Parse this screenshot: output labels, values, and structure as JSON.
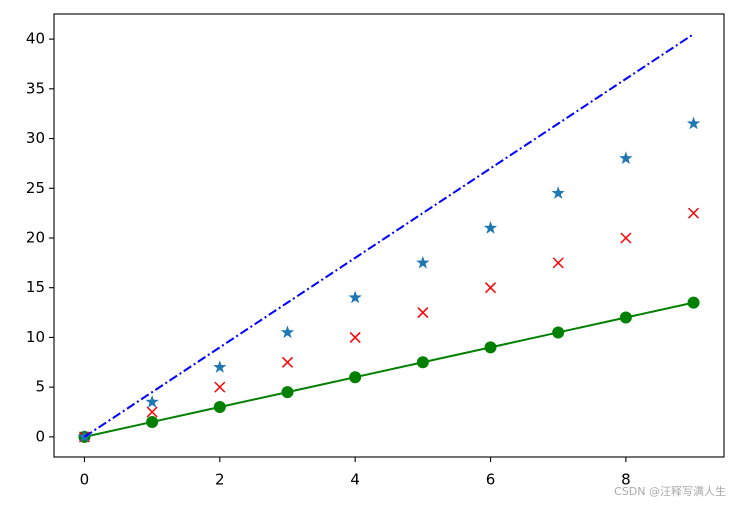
{
  "chart_data": {
    "type": "line",
    "x": [
      0,
      1,
      2,
      3,
      4,
      5,
      6,
      7,
      8,
      9
    ],
    "series": [
      {
        "color": "#008000",
        "marker": "circle",
        "linestyle": "solid",
        "values": [
          0,
          1.5,
          3,
          4.5,
          6,
          7.5,
          9,
          10.5,
          12,
          13.5
        ]
      },
      {
        "color": "#ff0000",
        "marker": "x",
        "linestyle": "none",
        "values": [
          0,
          2.5,
          5,
          7.5,
          10,
          12.5,
          15,
          17.5,
          20,
          22.5
        ]
      },
      {
        "color": "#1f77b4",
        "marker": "star",
        "linestyle": "none",
        "values": [
          0,
          3.5,
          7,
          10.5,
          14,
          17.5,
          21,
          24.5,
          28,
          31.5
        ]
      },
      {
        "color": "#0000ff",
        "marker": "none",
        "linestyle": "dashdot",
        "values": [
          0,
          4.5,
          9,
          13.5,
          18,
          22.5,
          27,
          31.5,
          36,
          40.5
        ]
      }
    ],
    "xlim": [
      -0.45,
      9.45
    ],
    "xticks": [
      0,
      2,
      4,
      6,
      8
    ],
    "ylim": [
      -2.025,
      42.525
    ],
    "yticks": [
      0,
      5,
      10,
      15,
      20,
      25,
      30,
      35,
      40
    ],
    "grid": false
  },
  "watermark": "CSDN @汪释写满人生"
}
